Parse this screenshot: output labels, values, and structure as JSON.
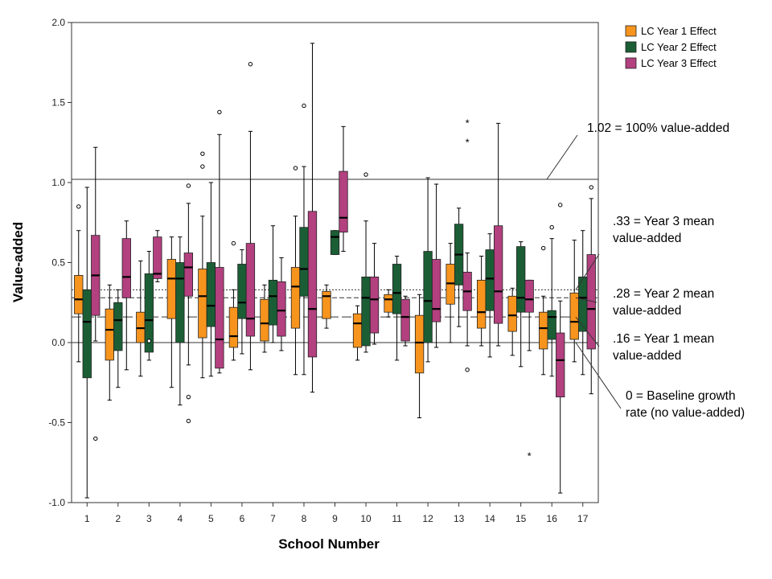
{
  "chart_data": {
    "type": "boxplot",
    "title": "",
    "xlabel": "School Number",
    "ylabel": "Value-added",
    "ylim": [
      -1.0,
      2.0
    ],
    "yticks": [
      "2.0",
      "1.5",
      "1.0",
      "0.5",
      "0.0",
      "-0.5",
      "-1.0"
    ],
    "categories": [
      "1",
      "2",
      "3",
      "4",
      "5",
      "6",
      "7",
      "8",
      "9",
      "10",
      "11",
      "12",
      "13",
      "14",
      "15",
      "16",
      "17"
    ],
    "legend_position": "top-right",
    "grid": false,
    "series": [
      {
        "name": "LC Year 1 Effect",
        "color": "#f7941d",
        "boxes": [
          {
            "min": -0.12,
            "q1": 0.18,
            "median": 0.27,
            "q3": 0.42,
            "max": 0.7,
            "outliers": [
              0.85
            ]
          },
          {
            "min": -0.36,
            "q1": -0.11,
            "median": 0.08,
            "q3": 0.21,
            "max": 0.36,
            "outliers": []
          },
          {
            "min": -0.21,
            "q1": 0.0,
            "median": 0.09,
            "q3": 0.19,
            "max": 0.51,
            "outliers": []
          },
          {
            "min": -0.28,
            "q1": 0.15,
            "median": 0.4,
            "q3": 0.52,
            "max": 0.66,
            "outliers": []
          },
          {
            "min": -0.22,
            "q1": 0.03,
            "median": 0.29,
            "q3": 0.46,
            "max": 0.79,
            "outliers": [
              1.1,
              1.18
            ]
          },
          {
            "min": -0.11,
            "q1": -0.03,
            "median": 0.04,
            "q3": 0.22,
            "max": 0.33,
            "outliers": [
              0.62
            ]
          },
          {
            "min": -0.06,
            "q1": 0.01,
            "median": 0.12,
            "q3": 0.27,
            "max": 0.36,
            "outliers": []
          },
          {
            "min": -0.2,
            "q1": 0.09,
            "median": 0.35,
            "q3": 0.47,
            "max": 0.79,
            "outliers": [
              1.09
            ]
          },
          {
            "min": 0.09,
            "q1": 0.15,
            "median": 0.29,
            "q3": 0.32,
            "max": 0.36,
            "outliers": []
          },
          {
            "min": -0.11,
            "q1": -0.03,
            "median": 0.12,
            "q3": 0.18,
            "max": 0.23,
            "outliers": []
          },
          {
            "min": 0.16,
            "q1": 0.19,
            "median": 0.27,
            "q3": 0.3,
            "max": 0.33,
            "outliers": []
          },
          {
            "min": -0.47,
            "q1": -0.19,
            "median": 0.0,
            "q3": 0.17,
            "max": 0.3,
            "outliers": []
          },
          {
            "min": 0.0,
            "q1": 0.24,
            "median": 0.37,
            "q3": 0.49,
            "max": 0.62,
            "outliers": []
          },
          {
            "min": -0.02,
            "q1": 0.09,
            "median": 0.19,
            "q3": 0.39,
            "max": 0.54,
            "outliers": []
          },
          {
            "min": -0.08,
            "q1": 0.07,
            "median": 0.17,
            "q3": 0.29,
            "max": 0.34,
            "outliers": []
          },
          {
            "min": -0.2,
            "q1": -0.04,
            "median": 0.09,
            "q3": 0.19,
            "max": 0.29,
            "outliers": [
              0.59
            ]
          },
          {
            "min": -0.12,
            "q1": 0.02,
            "median": 0.13,
            "q3": 0.31,
            "max": 0.64,
            "outliers": []
          }
        ]
      },
      {
        "name": "LC Year 2 Effect",
        "color": "#1b5e35",
        "boxes": [
          {
            "min": -0.97,
            "q1": -0.22,
            "median": 0.13,
            "q3": 0.33,
            "max": 0.97,
            "outliers": []
          },
          {
            "min": -0.28,
            "q1": -0.05,
            "median": 0.14,
            "q3": 0.25,
            "max": 0.33,
            "outliers": []
          },
          {
            "min": -0.11,
            "q1": -0.06,
            "median": 0.14,
            "q3": 0.43,
            "max": 0.57,
            "outliers": [
              0.01
            ]
          },
          {
            "min": -0.39,
            "q1": 0.0,
            "median": 0.4,
            "q3": 0.5,
            "max": 0.66,
            "outliers": []
          },
          {
            "min": -0.21,
            "q1": 0.1,
            "median": 0.23,
            "q3": 0.5,
            "max": 1.0,
            "outliers": []
          },
          {
            "min": -0.07,
            "q1": 0.15,
            "median": 0.25,
            "q3": 0.49,
            "max": 0.58,
            "outliers": []
          },
          {
            "min": 0.0,
            "q1": 0.11,
            "median": 0.29,
            "q3": 0.39,
            "max": 0.73,
            "outliers": []
          },
          {
            "min": -0.2,
            "q1": 0.29,
            "median": 0.46,
            "q3": 0.72,
            "max": 1.1,
            "outliers": [
              1.48
            ]
          },
          {
            "min": 0.55,
            "q1": 0.55,
            "median": 0.66,
            "q3": 0.7,
            "max": 0.7,
            "outliers": []
          },
          {
            "min": -0.06,
            "q1": -0.02,
            "median": 0.28,
            "q3": 0.41,
            "max": 0.76,
            "outliers": [
              1.05
            ]
          },
          {
            "min": -0.11,
            "q1": 0.18,
            "median": 0.31,
            "q3": 0.49,
            "max": 0.54,
            "outliers": []
          },
          {
            "min": -0.12,
            "q1": 0.0,
            "median": 0.26,
            "q3": 0.57,
            "max": 1.03,
            "outliers": []
          },
          {
            "min": 0.1,
            "q1": 0.36,
            "median": 0.55,
            "q3": 0.74,
            "max": 0.84,
            "outliers": []
          },
          {
            "min": -0.09,
            "q1": 0.2,
            "median": 0.4,
            "q3": 0.58,
            "max": 0.68,
            "outliers": []
          },
          {
            "min": -0.15,
            "q1": 0.19,
            "median": 0.28,
            "q3": 0.6,
            "max": 0.63,
            "outliers": []
          },
          {
            "min": -0.21,
            "q1": 0.02,
            "median": 0.16,
            "q3": 0.2,
            "max": 0.65,
            "outliers": [
              0.72
            ]
          },
          {
            "min": -0.2,
            "q1": 0.07,
            "median": 0.28,
            "q3": 0.41,
            "max": 0.7,
            "outliers": []
          }
        ]
      },
      {
        "name": "LC Year 3 Effect",
        "color": "#b3407f",
        "boxes": [
          {
            "min": 0.01,
            "q1": 0.17,
            "median": 0.42,
            "q3": 0.67,
            "max": 1.22,
            "outliers": [
              -0.6
            ]
          },
          {
            "min": -0.17,
            "q1": 0.28,
            "median": 0.41,
            "q3": 0.65,
            "max": 0.76,
            "outliers": []
          },
          {
            "min": 0.38,
            "q1": 0.4,
            "median": 0.43,
            "q3": 0.66,
            "max": 0.7,
            "outliers": []
          },
          {
            "min": -0.14,
            "q1": 0.29,
            "median": 0.47,
            "q3": 0.56,
            "max": 0.87,
            "outliers": [
              0.98,
              -0.34,
              -0.49
            ]
          },
          {
            "min": -0.19,
            "q1": -0.16,
            "median": 0.02,
            "q3": 0.47,
            "max": 1.3,
            "outliers": [
              1.44
            ]
          },
          {
            "min": -0.17,
            "q1": 0.04,
            "median": 0.15,
            "q3": 0.62,
            "max": 1.32,
            "outliers": [
              1.74
            ]
          },
          {
            "min": -0.05,
            "q1": 0.04,
            "median": 0.2,
            "q3": 0.38,
            "max": 0.53,
            "outliers": []
          },
          {
            "min": -0.31,
            "q1": -0.09,
            "median": 0.21,
            "q3": 0.82,
            "max": 1.87,
            "outliers": []
          },
          {
            "min": 0.57,
            "q1": 0.69,
            "median": 0.78,
            "q3": 1.07,
            "max": 1.35,
            "outliers": []
          },
          {
            "min": -0.01,
            "q1": 0.06,
            "median": 0.27,
            "q3": 0.41,
            "max": 0.62,
            "outliers": []
          },
          {
            "min": -0.02,
            "q1": 0.01,
            "median": 0.16,
            "q3": 0.27,
            "max": 0.29,
            "outliers": []
          },
          {
            "min": -0.03,
            "q1": 0.13,
            "median": 0.21,
            "q3": 0.52,
            "max": 0.99,
            "outliers": []
          },
          {
            "min": -0.02,
            "q1": 0.2,
            "median": 0.32,
            "q3": 0.44,
            "max": 0.56,
            "outliers": [
              -0.17
            ],
            "extremes": [
              1.26,
              1.38
            ]
          },
          {
            "min": -0.02,
            "q1": 0.12,
            "median": 0.32,
            "q3": 0.73,
            "max": 1.37,
            "outliers": []
          },
          {
            "min": -0.05,
            "q1": 0.19,
            "median": 0.27,
            "q3": 0.39,
            "max": 0.39,
            "outliers": [],
            "extremes": [
              -0.7
            ]
          },
          {
            "min": -0.94,
            "q1": -0.34,
            "median": -0.11,
            "q3": 0.06,
            "max": 0.26,
            "outliers": [
              0.86
            ]
          },
          {
            "min": -0.32,
            "q1": -0.04,
            "median": 0.21,
            "q3": 0.55,
            "max": 0.9,
            "outliers": [
              0.97
            ]
          }
        ]
      }
    ],
    "reference_lines": [
      {
        "value": 1.02,
        "label": "1.02 = 100% value-added",
        "style": "solid"
      },
      {
        "value": 0.33,
        "label": ".33 = Year 3 mean value-added",
        "lines": [
          ".33 = Year 3 mean",
          "value-added"
        ],
        "style": "dotted"
      },
      {
        "value": 0.28,
        "label": ".28 = Year 2 mean value-added",
        "lines": [
          ".28 = Year 2 mean",
          "value-added"
        ],
        "style": "dashed"
      },
      {
        "value": 0.16,
        "label": ".16 = Year 1 mean value-added",
        "lines": [
          ".16 = Year 1 mean",
          "value-added"
        ],
        "style": "longdash"
      },
      {
        "value": 0.0,
        "label": "0 = Baseline growth rate (no value-added)",
        "lines": [
          "0 = Baseline growth",
          "rate (no value-added)"
        ],
        "style": "solid"
      }
    ]
  }
}
